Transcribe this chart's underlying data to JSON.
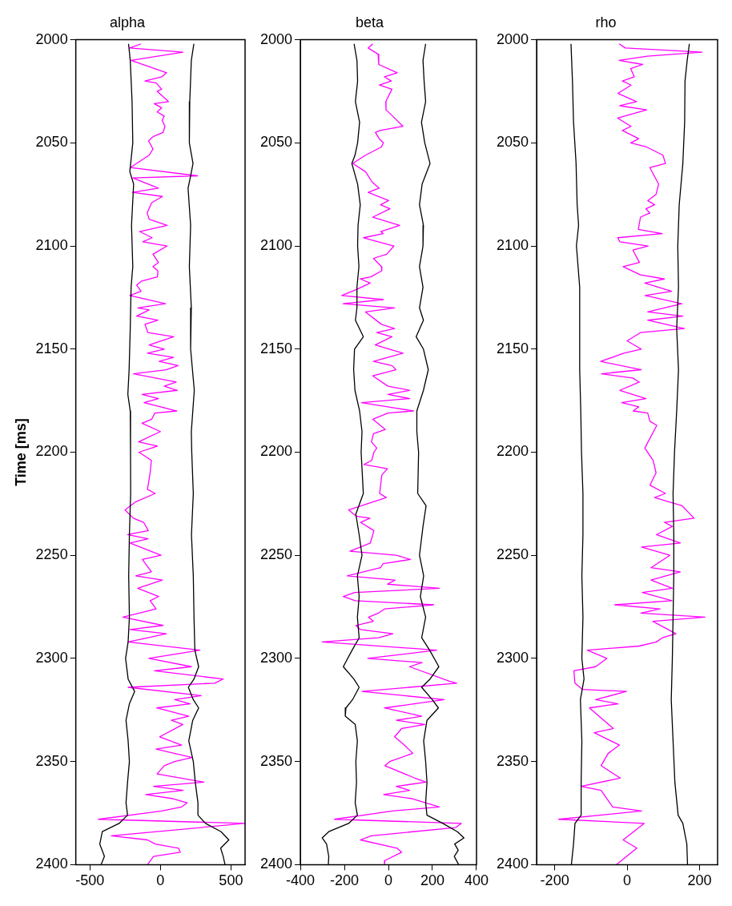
{
  "chart_data": [
    {
      "type": "line",
      "title": "alpha",
      "ylabel": "Time [ms]",
      "xlim": [
        -600,
        600
      ],
      "xticks": [
        -500,
        0,
        500
      ],
      "ylim": [
        2400,
        2000
      ],
      "yticks": [
        2000,
        2050,
        2100,
        2150,
        2200,
        2250,
        2300,
        2350,
        2400
      ],
      "series": [
        {
          "color": "#000000",
          "x": [
            -226,
            -214,
            -201,
            -196,
            -217,
            -190,
            -205,
            -196,
            -208,
            -214,
            -222,
            -231,
            -214,
            -212,
            -211,
            -220,
            -225,
            -220,
            -229,
            -247,
            -229,
            -183,
            -220,
            -244,
            -229,
            -220,
            -233,
            -244,
            -233,
            -293,
            -412,
            -430,
            -397,
            -421
          ],
          "values": [
            2002,
            2010,
            2030,
            2050,
            2064,
            2070,
            2090,
            2110,
            2120,
            2140,
            2160,
            2172,
            2180,
            2200,
            2220,
            2240,
            2260,
            2280,
            2292,
            2300,
            2310,
            2316,
            2322,
            2330,
            2340,
            2350,
            2360,
            2370,
            2376,
            2380,
            2384,
            2390,
            2396,
            2400
          ]
        },
        {
          "color": "#000000",
          "x": [
            237,
            219,
            208,
            205,
            231,
            214,
            196,
            214,
            205,
            219,
            214,
            240,
            219,
            222,
            233,
            220,
            233,
            238,
            244,
            271,
            238,
            198,
            233,
            271,
            229,
            201,
            233,
            247,
            266,
            266,
            320,
            430,
            485,
            427,
            445,
            458
          ],
          "values": [
            2002,
            2010,
            2030,
            2050,
            2060,
            2066,
            2072,
            2090,
            2110,
            2130,
            2150,
            2170,
            2190,
            2200,
            2220,
            2240,
            2260,
            2280,
            2296,
            2304,
            2310,
            2314,
            2320,
            2324,
            2330,
            2340,
            2350,
            2360,
            2370,
            2376,
            2380,
            2384,
            2388,
            2392,
            2396,
            2400
          ]
        },
        {
          "color": "#ff00ff",
          "x": [
            -137,
            -219,
            160,
            -208,
            44,
            9,
            -110,
            -30,
            9,
            -23,
            57,
            -44,
            9,
            -23,
            27,
            12,
            32,
            18,
            -53,
            -84,
            -53,
            -80,
            -214,
            263,
            -196,
            -14,
            -199,
            14,
            -62,
            -94,
            -80,
            48,
            -148,
            -59,
            -125,
            48,
            -53,
            -14,
            -53,
            -18,
            -21,
            -133,
            -169,
            -137,
            -217,
            36,
            -160,
            -80,
            -169,
            -18,
            -110,
            -89,
            94,
            -80,
            27,
            -92,
            93,
            -9,
            125,
            41,
            -190,
            112,
            27,
            119,
            -130,
            -14,
            -116,
            116,
            -39,
            -62,
            -130,
            0,
            -155,
            -21,
            -152,
            -64,
            -73,
            -92,
            -37,
            -174,
            -251,
            -192,
            -119,
            -86,
            -233,
            -88,
            -216,
            4,
            -128,
            -64,
            -174,
            13,
            -161,
            -13,
            -73,
            -31,
            -266,
            18,
            -216,
            42,
            -229,
            280,
            -82,
            220,
            -42,
            445,
            385,
            -229,
            289,
            101,
            211,
            -27,
            201,
            77,
            159,
            -5,
            150,
            -31,
            225,
            101,
            27,
            -24,
            308,
            -49,
            161,
            -104,
            88,
            189,
            150,
            9,
            -440,
            600,
            -348,
            -92,
            -37,
            128,
            141,
            -49,
            -92
          ],
          "values": [
            2002,
            2004,
            2006,
            2010,
            2016,
            2018,
            2020,
            2021,
            2024,
            2025,
            2030,
            2031,
            2033,
            2035,
            2037,
            2039,
            2042,
            2045,
            2047,
            2049,
            2053,
            2056,
            2062,
            2066,
            2067,
            2072,
            2074,
            2076,
            2079,
            2084,
            2087,
            2090,
            2093,
            2096,
            2098,
            2100,
            2104,
            2108,
            2110,
            2112,
            2115,
            2117,
            2119,
            2122,
            2124,
            2128,
            2130,
            2131,
            2134,
            2136,
            2138,
            2142,
            2144,
            2148,
            2150,
            2152,
            2154,
            2156,
            2158,
            2160,
            2162,
            2166,
            2168,
            2170,
            2172,
            2174,
            2176,
            2180,
            2181,
            2184,
            2186,
            2190,
            2195,
            2197,
            2200,
            2204,
            2210,
            2218,
            2220,
            2224,
            2228,
            2232,
            2234,
            2238,
            2240,
            2242,
            2244,
            2250,
            2252,
            2258,
            2260,
            2262,
            2266,
            2270,
            2272,
            2276,
            2280,
            2284,
            2286,
            2288,
            2292,
            2296,
            2300,
            2304,
            2306,
            2310,
            2312,
            2314,
            2318,
            2320,
            2322,
            2324,
            2328,
            2330,
            2332,
            2338,
            2342,
            2344,
            2348,
            2350,
            2352,
            2356,
            2360,
            2362,
            2364,
            2366,
            2368,
            2370,
            2372,
            2374,
            2378,
            2380,
            2386,
            2388,
            2390,
            2392,
            2394,
            2396,
            2400
          ]
        }
      ]
    },
    {
      "type": "line",
      "title": "beta",
      "xlim": [
        -400,
        400
      ],
      "xticks": [
        -400,
        -200,
        0,
        200,
        400
      ],
      "ylim": [
        2400,
        2000
      ],
      "yticks": [
        2000,
        2050,
        2100,
        2150,
        2200,
        2250,
        2300,
        2350,
        2400
      ],
      "series": [
        {
          "color": "#000000",
          "x": [
            -156,
            -143,
            -140,
            -150,
            -131,
            -140,
            -152,
            -166,
            -140,
            -128,
            -138,
            -140,
            -134,
            -143,
            -143,
            -150,
            -114,
            -154,
            -158,
            -152,
            -131,
            -120,
            -124,
            -114,
            -148,
            -133,
            -120,
            -141,
            -133,
            -141,
            -133,
            -165,
            -205,
            -157,
            -133,
            -163,
            -193,
            -196,
            -151,
            -141,
            -148,
            -145,
            -151,
            -141,
            -181,
            -271,
            -301,
            -281,
            -271,
            -273
          ],
          "values": [
            2002,
            2010,
            2020,
            2030,
            2040,
            2050,
            2056,
            2060,
            2070,
            2080,
            2090,
            2100,
            2110,
            2120,
            2130,
            2136,
            2144,
            2150,
            2160,
            2170,
            2180,
            2190,
            2200,
            2220,
            2230,
            2240,
            2250,
            2260,
            2270,
            2280,
            2290,
            2296,
            2304,
            2310,
            2314,
            2320,
            2324,
            2328,
            2332,
            2340,
            2350,
            2360,
            2370,
            2376,
            2380,
            2384,
            2387,
            2390,
            2396,
            2400
          ]
        },
        {
          "color": "#000000",
          "x": [
            169,
            157,
            162,
            169,
            150,
            165,
            189,
            153,
            141,
            159,
            157,
            141,
            157,
            141,
            159,
            126,
            159,
            181,
            159,
            129,
            129,
            137,
            133,
            171,
            157,
            141,
            160,
            145,
            169,
            151,
            187,
            229,
            189,
            151,
            199,
            227,
            175,
            160,
            169,
            175,
            169,
            175,
            247,
            313,
            343,
            301,
            317,
            299,
            319
          ],
          "values": [
            2002,
            2010,
            2020,
            2030,
            2040,
            2050,
            2060,
            2070,
            2080,
            2090,
            2100,
            2110,
            2120,
            2130,
            2136,
            2144,
            2150,
            2160,
            2170,
            2180,
            2190,
            2200,
            2220,
            2226,
            2236,
            2250,
            2260,
            2270,
            2280,
            2290,
            2296,
            2304,
            2310,
            2314,
            2320,
            2324,
            2330,
            2340,
            2350,
            2360,
            2370,
            2376,
            2380,
            2384,
            2387,
            2390,
            2393,
            2396,
            2400
          ]
        },
        {
          "color": "#ff00ff",
          "x": [
            -71,
            -92,
            -47,
            -44,
            40,
            -18,
            13,
            -41,
            16,
            -12,
            -11,
            19,
            66,
            -38,
            -59,
            -42,
            -23,
            -32,
            -104,
            -162,
            -104,
            -74,
            -42,
            -92,
            1,
            -36,
            7,
            -71,
            51,
            -35,
            -24,
            -113,
            -80,
            25,
            -8,
            -68,
            -32,
            -30,
            -80,
            -128,
            -83,
            -143,
            -212,
            -23,
            -206,
            28,
            -104,
            -32,
            28,
            -53,
            16,
            -60,
            66,
            -68,
            16,
            34,
            -71,
            -2,
            97,
            -2,
            97,
            -122,
            114,
            -2,
            -71,
            -14,
            -68,
            -77,
            -53,
            -66,
            -76,
            -111,
            -4,
            -30,
            -40,
            -10,
            -181,
            -147,
            -84,
            -127,
            -66,
            -82,
            -175,
            36,
            100,
            -24,
            -36,
            -187,
            30,
            -4,
            231,
            -153,
            -205,
            -151,
            205,
            -18,
            -45,
            -90,
            -69,
            -148,
            -127,
            20,
            -45,
            -301,
            219,
            -94,
            153,
            96,
            277,
            310,
            -120,
            253,
            -18,
            151,
            36,
            165,
            60,
            28,
            72,
            111,
            6,
            -16,
            120,
            171,
            36,
            96,
            -22,
            108,
            231,
            18,
            -245,
            331,
            305,
            -78,
            -127,
            39,
            60,
            -16,
            -18
          ],
          "values": [
            2002,
            2004,
            2007,
            2012,
            2016,
            2018,
            2020,
            2022,
            2024,
            2030,
            2034,
            2037,
            2042,
            2044,
            2045,
            2048,
            2050,
            2052,
            2056,
            2060,
            2064,
            2069,
            2072,
            2074,
            2078,
            2080,
            2082,
            2086,
            2090,
            2093,
            2094,
            2096,
            2097,
            2100,
            2104,
            2106,
            2110,
            2112,
            2115,
            2116,
            2118,
            2121,
            2124,
            2126,
            2128,
            2130,
            2132,
            2138,
            2140,
            2142,
            2144,
            2148,
            2152,
            2156,
            2158,
            2160,
            2163,
            2168,
            2170,
            2172,
            2174,
            2176,
            2180,
            2181,
            2184,
            2189,
            2191,
            2195,
            2198,
            2200,
            2204,
            2206,
            2208,
            2211,
            2220,
            2222,
            2228,
            2231,
            2232,
            2234,
            2238,
            2244,
            2248,
            2250,
            2252,
            2254,
            2256,
            2260,
            2262,
            2264,
            2266,
            2268,
            2270,
            2272,
            2274,
            2276,
            2278,
            2280,
            2282,
            2284,
            2286,
            2288,
            2290,
            2292,
            2296,
            2300,
            2302,
            2304,
            2311,
            2312,
            2316,
            2320,
            2324,
            2328,
            2330,
            2332,
            2334,
            2338,
            2342,
            2346,
            2350,
            2352,
            2358,
            2360,
            2362,
            2364,
            2366,
            2368,
            2372,
            2374,
            2378,
            2380,
            2382,
            2386,
            2388,
            2392,
            2394,
            2398,
            2400
          ]
        }
      ]
    },
    {
      "type": "line",
      "title": "rho",
      "xlim": [
        -250,
        250
      ],
      "xticks": [
        -200,
        0,
        200
      ],
      "ylim": [
        2400,
        2000
      ],
      "yticks": [
        2000,
        2050,
        2100,
        2150,
        2200,
        2250,
        2300,
        2350,
        2400
      ],
      "series": [
        {
          "color": "#000000",
          "x": [
            -155,
            -151,
            -148,
            -141,
            -138,
            -134,
            -140,
            -131,
            -131,
            -128,
            -126,
            -122,
            -122,
            -125,
            -122,
            -125,
            -119,
            -129,
            -125,
            -127,
            -127,
            -144,
            -148,
            -154
          ],
          "values": [
            2002,
            2020,
            2040,
            2060,
            2080,
            2090,
            2100,
            2120,
            2160,
            2180,
            2200,
            2220,
            2240,
            2260,
            2280,
            2300,
            2310,
            2320,
            2340,
            2360,
            2376,
            2380,
            2390,
            2400
          ]
        },
        {
          "color": "#000000",
          "x": [
            172,
            166,
            160,
            159,
            154,
            144,
            140,
            142,
            137,
            142,
            137,
            131,
            127,
            129,
            129,
            127,
            125,
            122,
            127,
            132,
            141,
            154,
            165,
            167
          ],
          "values": [
            2002,
            2010,
            2020,
            2040,
            2060,
            2080,
            2100,
            2120,
            2140,
            2160,
            2180,
            2200,
            2220,
            2240,
            2260,
            2280,
            2300,
            2320,
            2340,
            2360,
            2376,
            2380,
            2390,
            2400
          ]
        },
        {
          "color": "#ff00ff",
          "x": [
            -22,
            -5,
            207,
            56,
            -22,
            43,
            10,
            20,
            -13,
            11,
            -25,
            26,
            -20,
            54,
            -26,
            11,
            -13,
            32,
            10,
            54,
            99,
            106,
            63,
            87,
            80,
            57,
            76,
            52,
            63,
            37,
            31,
            97,
            -26,
            -20,
            58,
            16,
            34,
            -11,
            37,
            103,
            49,
            123,
            50,
            151,
            57,
            154,
            57,
            158,
            37,
            0,
            39,
            -9,
            -73,
            39,
            -71,
            15,
            34,
            -20,
            52,
            -15,
            32,
            17,
            57,
            63,
            82,
            49,
            72,
            80,
            63,
            106,
            76,
            152,
            185,
            103,
            125,
            81,
            147,
            40,
            118,
            66,
            147,
            66,
            125,
            42,
            124,
            -34,
            91,
            38,
            215,
            71,
            135,
            97,
            81,
            33,
            -110,
            -56,
            -87,
            -147,
            -144,
            -124,
            -2,
            -87,
            -25,
            -104,
            -38,
            -91,
            -21,
            -52,
            -72,
            -19,
            -127,
            -72,
            -40,
            40,
            -189,
            47,
            -11,
            27,
            -30
          ],
          "values": [
            2002,
            2004,
            2006,
            2008,
            2010,
            2012,
            2014,
            2018,
            2020,
            2022,
            2026,
            2030,
            2032,
            2034,
            2038,
            2042,
            2044,
            2048,
            2050,
            2052,
            2056,
            2060,
            2062,
            2070,
            2075,
            2078,
            2080,
            2082,
            2084,
            2086,
            2092,
            2094,
            2096,
            2098,
            2100,
            2102,
            2108,
            2110,
            2114,
            2116,
            2118,
            2122,
            2124,
            2128,
            2132,
            2134,
            2136,
            2140,
            2142,
            2146,
            2150,
            2152,
            2156,
            2160,
            2162,
            2164,
            2166,
            2170,
            2174,
            2176,
            2178,
            2180,
            2181,
            2185,
            2187,
            2198,
            2204,
            2210,
            2216,
            2220,
            2222,
            2226,
            2232,
            2234,
            2236,
            2240,
            2244,
            2246,
            2250,
            2256,
            2258,
            2262,
            2266,
            2268,
            2272,
            2274,
            2276,
            2278,
            2280,
            2282,
            2288,
            2290,
            2292,
            2294,
            2296,
            2300,
            2304,
            2306,
            2312,
            2315,
            2316,
            2320,
            2322,
            2324,
            2334,
            2336,
            2342,
            2346,
            2352,
            2358,
            2362,
            2364,
            2372,
            2374,
            2378,
            2380,
            2388,
            2392,
            2400
          ]
        }
      ]
    }
  ]
}
